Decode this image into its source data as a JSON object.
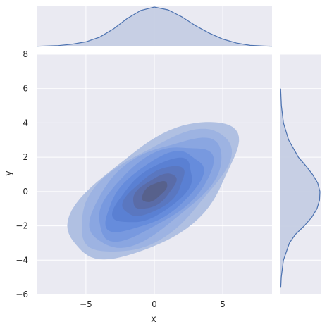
{
  "chart_data": {
    "type": "kde-joint",
    "xlabel": "x",
    "ylabel": "y",
    "xlim": [
      -8.6,
      8.6
    ],
    "ylim": [
      -6,
      8
    ],
    "x_ticks": [
      -5,
      0,
      5
    ],
    "y_ticks": [
      -6,
      -4,
      -2,
      0,
      2,
      4,
      6,
      8
    ],
    "grid": true,
    "colors": {
      "background": "#eaeaf2",
      "grid": "#ffffff",
      "line": "#4c72b0",
      "marginal_fill": "#c5cde3",
      "levels": [
        "#b0c0e2",
        "#9db3e2",
        "#8aa6e1",
        "#7899df",
        "#668cdc",
        "#5a80d3",
        "#5a77c0",
        "#5a6ca8",
        "#57618c"
      ]
    },
    "joint": {
      "center": [
        0,
        0
      ],
      "std": [
        2.3,
        1.5
      ],
      "correlation": 0.62,
      "levels": 9
    },
    "marginal_x": {
      "x": [
        -8.6,
        -7,
        -6,
        -5,
        -4,
        -3,
        -2,
        -1,
        0,
        1,
        2,
        3,
        4,
        5,
        6,
        7,
        8,
        8.6
      ],
      "density": [
        0.001,
        0.004,
        0.01,
        0.02,
        0.04,
        0.075,
        0.12,
        0.155,
        0.17,
        0.158,
        0.128,
        0.09,
        0.058,
        0.032,
        0.015,
        0.005,
        0.002,
        0.001
      ]
    },
    "marginal_y": {
      "y": [
        -5.6,
        -5,
        -4,
        -3,
        -2.5,
        -2,
        -1.5,
        -1,
        -0.5,
        0,
        0.5,
        1,
        1.5,
        2,
        3,
        4,
        5,
        6
      ],
      "density": [
        0.002,
        0.005,
        0.02,
        0.06,
        0.1,
        0.16,
        0.21,
        0.245,
        0.262,
        0.265,
        0.25,
        0.215,
        0.17,
        0.12,
        0.055,
        0.02,
        0.006,
        0.001
      ]
    }
  }
}
